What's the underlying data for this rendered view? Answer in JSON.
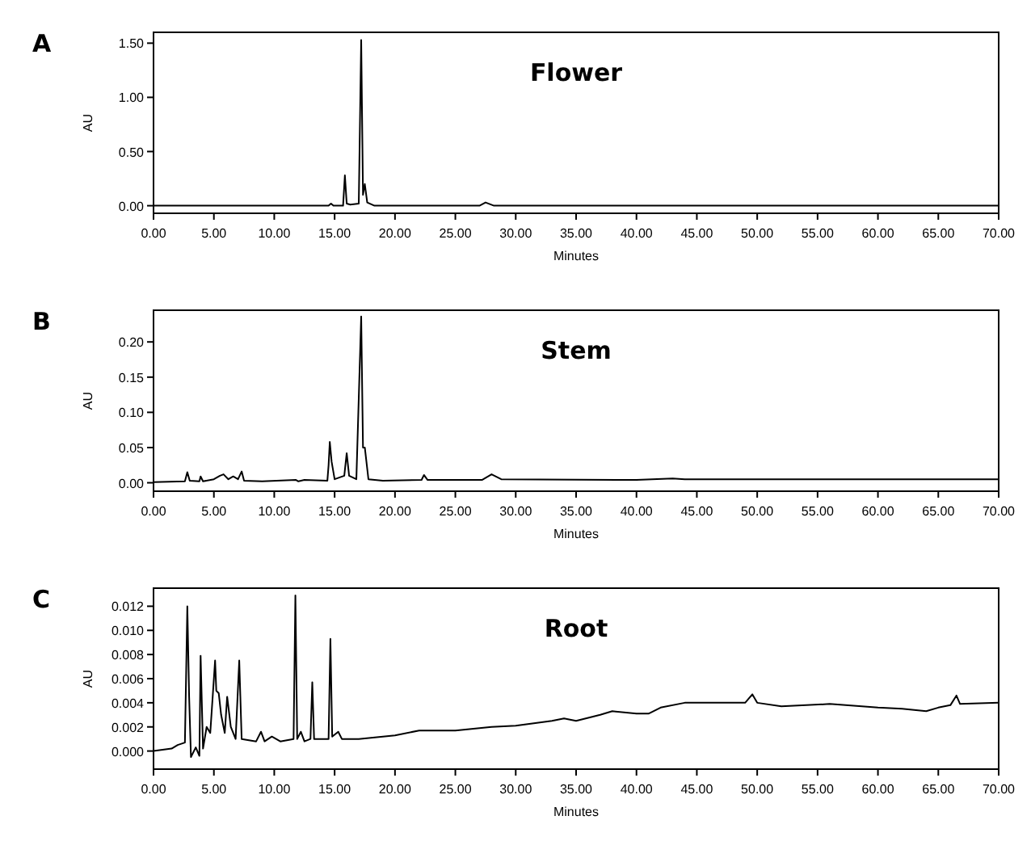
{
  "chart_data": [
    {
      "type": "line",
      "title": "A",
      "annotations": [
        "Flower"
      ],
      "xlabel": "Minutes",
      "ylabel": "AU",
      "xlim": [
        0,
        70
      ],
      "ylim": [
        -0.07,
        1.6
      ],
      "xticks": [
        {
          "value": 0,
          "label": "0.00"
        },
        {
          "value": 5,
          "label": "5.00"
        },
        {
          "value": 10,
          "label": "10.00"
        },
        {
          "value": 15,
          "label": "15.00"
        },
        {
          "value": 20,
          "label": "20.00"
        },
        {
          "value": 25,
          "label": "25.00"
        },
        {
          "value": 30,
          "label": "30.00"
        },
        {
          "value": 35,
          "label": "35.00"
        },
        {
          "value": 40,
          "label": "40.00"
        },
        {
          "value": 45,
          "label": "45.00"
        },
        {
          "value": 50,
          "label": "50.00"
        },
        {
          "value": 55,
          "label": "55.00"
        },
        {
          "value": 60,
          "label": "60.00"
        },
        {
          "value": 65,
          "label": "65.00"
        },
        {
          "value": 70,
          "label": "70.00"
        }
      ],
      "yticks": [
        {
          "value": 0,
          "label": "0.00"
        },
        {
          "value": 0.5,
          "label": "0.50"
        },
        {
          "value": 1,
          "label": "1.00"
        },
        {
          "value": 1.5,
          "label": "1.50"
        }
      ],
      "series": [
        {
          "color": "#000000",
          "x": [
            0,
            14.5,
            14.7,
            14.9,
            15.7,
            15.85,
            16.0,
            16.3,
            17.0,
            17.2,
            17.35,
            17.5,
            17.7,
            18.3,
            27,
            27.5,
            28.2,
            70
          ],
          "values": [
            0,
            0,
            0.02,
            0,
            0,
            0.28,
            0.02,
            0.01,
            0.02,
            1.53,
            0.1,
            0.2,
            0.03,
            0,
            0,
            0.03,
            0,
            0
          ]
        }
      ]
    },
    {
      "type": "line",
      "title": "B",
      "annotations": [
        "Stem"
      ],
      "xlabel": "Minutes",
      "ylabel": "AU",
      "xlim": [
        0,
        70
      ],
      "ylim": [
        -0.012,
        0.245
      ],
      "xticks": [
        {
          "value": 0,
          "label": "0.00"
        },
        {
          "value": 5,
          "label": "5.00"
        },
        {
          "value": 10,
          "label": "10.00"
        },
        {
          "value": 15,
          "label": "15.00"
        },
        {
          "value": 20,
          "label": "20.00"
        },
        {
          "value": 25,
          "label": "25.00"
        },
        {
          "value": 30,
          "label": "30.00"
        },
        {
          "value": 35,
          "label": "35.00"
        },
        {
          "value": 40,
          "label": "40.00"
        },
        {
          "value": 45,
          "label": "45.00"
        },
        {
          "value": 50,
          "label": "50.00"
        },
        {
          "value": 55,
          "label": "55.00"
        },
        {
          "value": 60,
          "label": "60.00"
        },
        {
          "value": 65,
          "label": "65.00"
        },
        {
          "value": 70,
          "label": "70.00"
        }
      ],
      "yticks": [
        {
          "value": 0,
          "label": "0.00"
        },
        {
          "value": 0.05,
          "label": "0.05"
        },
        {
          "value": 0.1,
          "label": "0.10"
        },
        {
          "value": 0.15,
          "label": "0.15"
        },
        {
          "value": 0.2,
          "label": "0.20"
        }
      ],
      "series": [
        {
          "color": "#000000",
          "x": [
            0,
            2.6,
            2.8,
            3.0,
            3.8,
            3.9,
            4.1,
            5.0,
            5.5,
            5.8,
            6.2,
            6.6,
            7.0,
            7.3,
            7.5,
            9,
            11.8,
            12.0,
            12.5,
            14.4,
            14.5,
            14.6,
            14.75,
            15.0,
            15.8,
            16.0,
            16.2,
            16.8,
            17.2,
            17.35,
            17.5,
            17.8,
            19,
            22.2,
            22.4,
            22.7,
            27.2,
            28,
            28.8,
            40,
            43,
            44,
            70
          ],
          "values": [
            0.001,
            0.002,
            0.015,
            0.003,
            0.002,
            0.009,
            0.002,
            0.005,
            0.01,
            0.012,
            0.005,
            0.009,
            0.005,
            0.016,
            0.003,
            0.002,
            0.004,
            0.002,
            0.004,
            0.003,
            0.025,
            0.058,
            0.03,
            0.005,
            0.01,
            0.042,
            0.01,
            0.005,
            0.236,
            0.05,
            0.05,
            0.005,
            0.003,
            0.004,
            0.011,
            0.004,
            0.004,
            0.012,
            0.005,
            0.004,
            0.006,
            0.005,
            0.005
          ]
        }
      ]
    },
    {
      "type": "line",
      "title": "C",
      "annotations": [
        "Root"
      ],
      "xlabel": "Minutes",
      "ylabel": "AU",
      "xlim": [
        0,
        70
      ],
      "ylim": [
        -0.0015,
        0.0135
      ],
      "xticks": [
        {
          "value": 0,
          "label": "0.00"
        },
        {
          "value": 5,
          "label": "5.00"
        },
        {
          "value": 10,
          "label": "10.00"
        },
        {
          "value": 15,
          "label": "15.00"
        },
        {
          "value": 20,
          "label": "20.00"
        },
        {
          "value": 25,
          "label": "25.00"
        },
        {
          "value": 30,
          "label": "30.00"
        },
        {
          "value": 35,
          "label": "35.00"
        },
        {
          "value": 40,
          "label": "40.00"
        },
        {
          "value": 45,
          "label": "45.00"
        },
        {
          "value": 50,
          "label": "50.00"
        },
        {
          "value": 55,
          "label": "55.00"
        },
        {
          "value": 60,
          "label": "60.00"
        },
        {
          "value": 65,
          "label": "65.00"
        },
        {
          "value": 70,
          "label": "70.00"
        }
      ],
      "yticks": [
        {
          "value": 0,
          "label": "0.000"
        },
        {
          "value": 0.002,
          "label": "0.002"
        },
        {
          "value": 0.004,
          "label": "0.004"
        },
        {
          "value": 0.006,
          "label": "0.006"
        },
        {
          "value": 0.008,
          "label": "0.008"
        },
        {
          "value": 0.01,
          "label": "0.010"
        },
        {
          "value": 0.012,
          "label": "0.012"
        }
      ],
      "series": [
        {
          "color": "#000000",
          "x": [
            0,
            1.5,
            2,
            2.6,
            2.8,
            2.95,
            3.1,
            3.5,
            3.8,
            3.9,
            4.1,
            4.4,
            4.7,
            5.1,
            5.2,
            5.4,
            5.6,
            5.9,
            6.1,
            6.4,
            6.8,
            7.1,
            7.3,
            8.5,
            8.9,
            9.2,
            9.8,
            10.5,
            11.6,
            11.75,
            11.9,
            12.2,
            12.5,
            13.0,
            13.15,
            13.3,
            14.5,
            14.65,
            14.8,
            15.3,
            15.6,
            17,
            20,
            22,
            25,
            28,
            30,
            33,
            34,
            35,
            37,
            38,
            40,
            41,
            42,
            44,
            46,
            49,
            49.6,
            50,
            52,
            56,
            60,
            62,
            64,
            65,
            66,
            66.5,
            66.8,
            70
          ],
          "values": [
            0,
            0.0002,
            0.0005,
            0.0007,
            0.012,
            0.0045,
            -0.0005,
            0.0003,
            -0.0004,
            0.0079,
            0.0002,
            0.002,
            0.0015,
            0.0075,
            0.005,
            0.0048,
            0.003,
            0.0015,
            0.0045,
            0.002,
            0.001,
            0.0075,
            0.001,
            0.0008,
            0.0016,
            0.0008,
            0.0012,
            0.0008,
            0.001,
            0.0129,
            0.001,
            0.0016,
            0.0008,
            0.001,
            0.0057,
            0.001,
            0.001,
            0.0093,
            0.0012,
            0.0016,
            0.001,
            0.001,
            0.0013,
            0.0017,
            0.0017,
            0.002,
            0.0021,
            0.0025,
            0.0027,
            0.0025,
            0.003,
            0.0033,
            0.0031,
            0.0031,
            0.0036,
            0.004,
            0.004,
            0.004,
            0.0047,
            0.004,
            0.0037,
            0.0039,
            0.0036,
            0.0035,
            0.0033,
            0.0036,
            0.0038,
            0.0046,
            0.0039,
            0.004
          ]
        }
      ]
    }
  ]
}
